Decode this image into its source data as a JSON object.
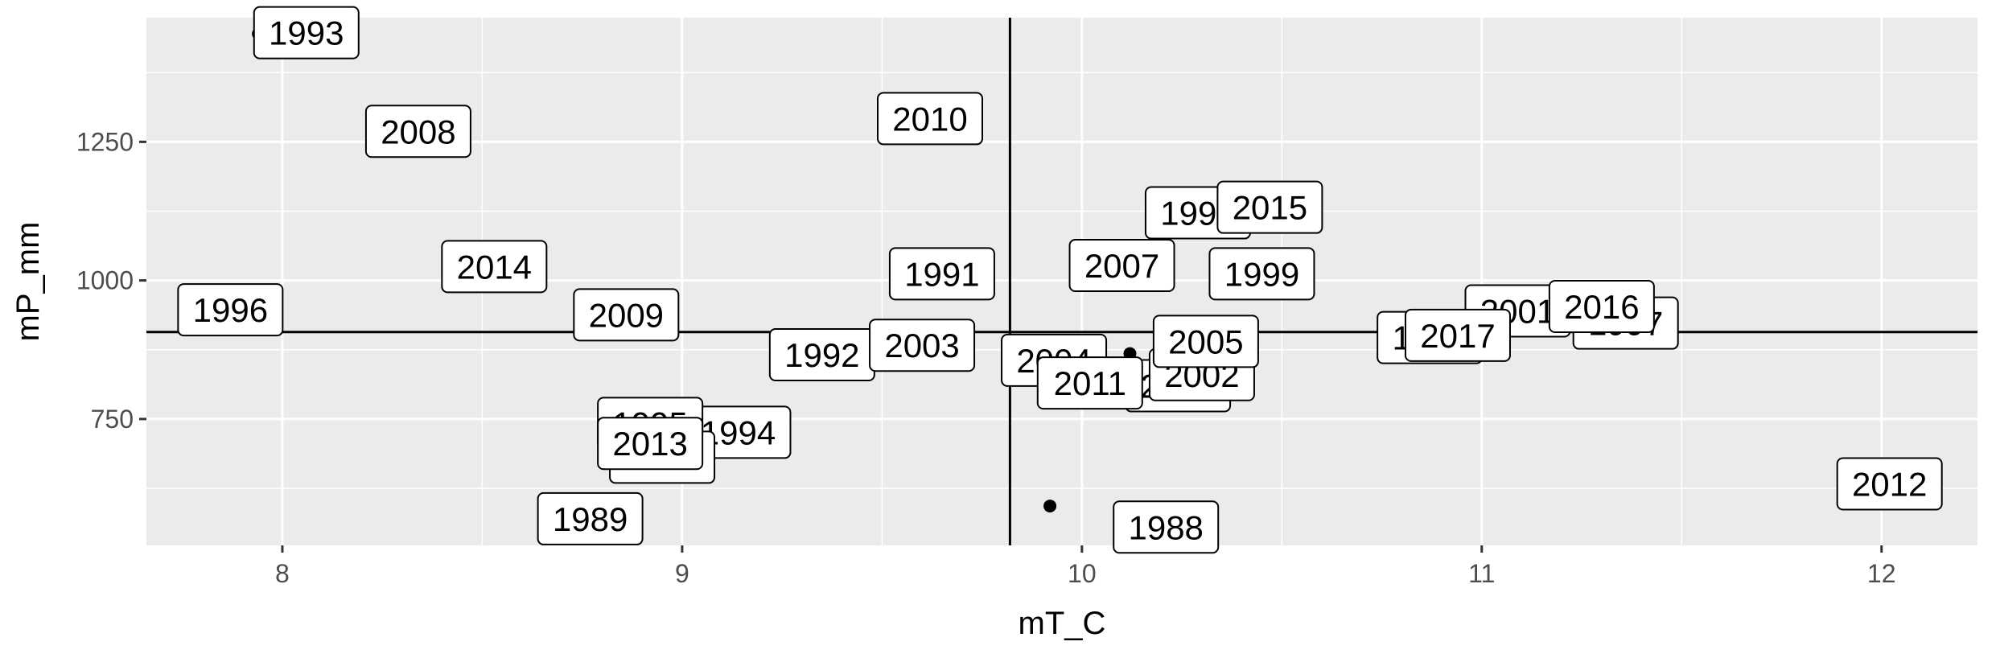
{
  "chart_data": {
    "type": "scatter",
    "title": "",
    "xlabel": "mT_C",
    "ylabel": "mP_mm",
    "xlim": [
      7.66,
      12.24
    ],
    "ylim": [
      522,
      1474
    ],
    "xticks": [
      8,
      9,
      10,
      11,
      12
    ],
    "yticks": [
      750,
      1000,
      1250
    ],
    "xtick_labels": [
      "8",
      "9",
      "10",
      "11",
      "12"
    ],
    "ytick_labels": [
      "750",
      "1000",
      "1250"
    ],
    "grid": true,
    "vline_x": 9.82,
    "hline_y": 907,
    "colors": {
      "panel": "#ebebeb",
      "grid": "#ffffff",
      "point": "#000000",
      "reference_line": "#000000"
    },
    "points": [
      {
        "label": "1988",
        "x": 9.92,
        "y": 593,
        "lx": 10.21,
        "ly": 555
      },
      {
        "label": "1989",
        "x": 8.81,
        "y": 589,
        "lx": 8.77,
        "ly": 570
      },
      {
        "label": "1990",
        "x": 10.12,
        "y": 868,
        "lx": 10.29,
        "ly": 1122
      },
      {
        "label": "1991",
        "x": 9.68,
        "y": 1010,
        "lx": 9.65,
        "ly": 1012
      },
      {
        "label": "1992",
        "x": 9.42,
        "y": 868,
        "lx": 9.35,
        "ly": 866
      },
      {
        "label": "1993",
        "x": 7.94,
        "y": 1445,
        "lx": 8.06,
        "ly": 1447
      },
      {
        "label": "1994",
        "x": 9.1,
        "y": 701,
        "lx": 9.14,
        "ly": 726
      },
      {
        "label": "1995",
        "x": 8.98,
        "y": 743,
        "lx": 8.92,
        "ly": 742
      },
      {
        "label": "1996",
        "x": 7.83,
        "y": 945,
        "lx": 7.87,
        "ly": 947
      },
      {
        "label": "1997",
        "x": 11.3,
        "y": 923,
        "lx": 11.36,
        "ly": 923
      },
      {
        "label": "1998",
        "x": 10.87,
        "y": 897,
        "lx": 10.87,
        "ly": 897
      },
      {
        "label": "1999",
        "x": 10.45,
        "y": 1010,
        "lx": 10.45,
        "ly": 1012
      },
      {
        "label": "2000",
        "x": 10.32,
        "y": 819,
        "lx": 10.24,
        "ly": 810
      },
      {
        "label": "2001",
        "x": 11.1,
        "y": 945,
        "lx": 11.09,
        "ly": 945
      },
      {
        "label": "2002",
        "x": 10.26,
        "y": 832,
        "lx": 10.3,
        "ly": 830
      },
      {
        "label": "2003",
        "x": 9.65,
        "y": 885,
        "lx": 9.6,
        "ly": 883
      },
      {
        "label": "2004",
        "x": 9.92,
        "y": 855,
        "lx": 9.93,
        "ly": 856
      },
      {
        "label": "2005",
        "x": 10.32,
        "y": 890,
        "lx": 10.31,
        "ly": 890
      },
      {
        "label": "2006",
        "x": 8.95,
        "y": 681,
        "lx": 8.95,
        "ly": 681
      },
      {
        "label": "2007",
        "x": 10.1,
        "y": 1025,
        "lx": 10.1,
        "ly": 1027
      },
      {
        "label": "2008",
        "x": 8.36,
        "y": 1267,
        "lx": 8.34,
        "ly": 1269
      },
      {
        "label": "2009",
        "x": 8.91,
        "y": 940,
        "lx": 8.86,
        "ly": 938
      },
      {
        "label": "2010",
        "x": 9.63,
        "y": 1290,
        "lx": 9.62,
        "ly": 1292
      },
      {
        "label": "2011",
        "x": 9.98,
        "y": 820,
        "lx": 10.02,
        "ly": 815
      },
      {
        "label": "2012",
        "x": 12.09,
        "y": 633,
        "lx": 12.02,
        "ly": 633
      },
      {
        "label": "2013",
        "x": 8.95,
        "y": 708,
        "lx": 8.92,
        "ly": 706
      },
      {
        "label": "2014",
        "x": 8.53,
        "y": 1023,
        "lx": 8.53,
        "ly": 1025
      },
      {
        "label": "2015",
        "x": 10.48,
        "y": 1130,
        "lx": 10.47,
        "ly": 1132
      },
      {
        "label": "2016",
        "x": 11.24,
        "y": 951,
        "lx": 11.3,
        "ly": 953
      },
      {
        "label": "2017",
        "x": 10.98,
        "y": 901,
        "lx": 10.94,
        "ly": 901
      }
    ]
  }
}
